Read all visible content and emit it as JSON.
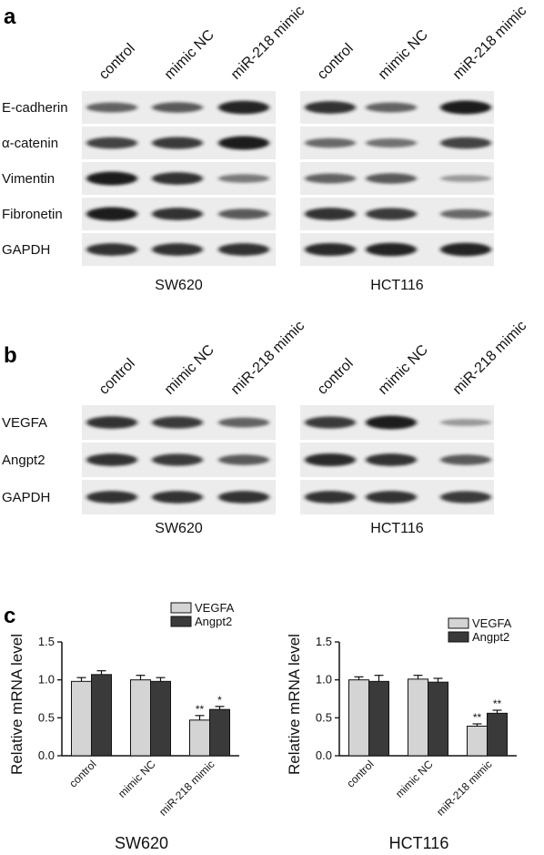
{
  "panels": {
    "a": "a",
    "b": "b",
    "c": "c"
  },
  "lanes": [
    "control",
    "mimic NC",
    "miR-218 mimic"
  ],
  "blot_a": {
    "rows": [
      "E-cadherin",
      "α-catenin",
      "Vimentin",
      "Fibronetin",
      "GAPDH"
    ],
    "cells": [
      "SW620",
      "HCT116"
    ],
    "intensity": {
      "SW620": [
        [
          0.55,
          0.6,
          0.95
        ],
        [
          0.75,
          0.8,
          1.0
        ],
        [
          1.0,
          0.85,
          0.4
        ],
        [
          1.0,
          0.85,
          0.6
        ],
        [
          0.85,
          0.85,
          0.85
        ]
      ],
      "HCT116": [
        [
          0.85,
          0.55,
          1.0
        ],
        [
          0.5,
          0.45,
          0.75
        ],
        [
          0.55,
          0.6,
          0.2
        ],
        [
          0.85,
          0.8,
          0.5
        ],
        [
          0.9,
          0.95,
          0.95
        ]
      ]
    }
  },
  "blot_b": {
    "rows": [
      "VEGFA",
      "Angpt2",
      "GAPDH"
    ],
    "cells": [
      "SW620",
      "HCT116"
    ],
    "intensity": {
      "SW620": [
        [
          0.85,
          0.8,
          0.55
        ],
        [
          0.85,
          0.8,
          0.6
        ],
        [
          0.85,
          0.85,
          0.85
        ]
      ],
      "HCT116": [
        [
          0.8,
          1.0,
          0.2
        ],
        [
          0.9,
          0.85,
          0.6
        ],
        [
          0.85,
          0.85,
          0.8
        ]
      ]
    }
  },
  "colors": {
    "vegfa": "#d4d4d4",
    "angpt2": "#3a3a3a",
    "band": "#1a1a1a"
  },
  "chart_data": [
    {
      "type": "bar",
      "title": "SW620",
      "ylabel": "Relative mRNA level",
      "categories": [
        "control",
        "mimic NC",
        "miR-218 mimic"
      ],
      "series": [
        {
          "name": "VEGFA",
          "values": [
            0.98,
            1.0,
            0.47
          ],
          "errors": [
            0.05,
            0.06,
            0.06
          ],
          "stars": [
            "",
            "",
            "**"
          ]
        },
        {
          "name": "Angpt2",
          "values": [
            1.07,
            0.98,
            0.61
          ],
          "errors": [
            0.05,
            0.05,
            0.04
          ],
          "stars": [
            "",
            "",
            "*"
          ]
        }
      ],
      "ylim": [
        0,
        1.5
      ],
      "yticks": [
        "0.0",
        "0.5",
        "1.0",
        "1.5"
      ],
      "legend": "top-right"
    },
    {
      "type": "bar",
      "title": "HCT116",
      "ylabel": "Relative mRNA level",
      "categories": [
        "control",
        "mimic NC",
        "miR-218 mimic"
      ],
      "series": [
        {
          "name": "VEGFA",
          "values": [
            1.0,
            1.01,
            0.39
          ],
          "errors": [
            0.04,
            0.05,
            0.03
          ],
          "stars": [
            "",
            "",
            "**"
          ]
        },
        {
          "name": "Angpt2",
          "values": [
            0.98,
            0.97,
            0.56
          ],
          "errors": [
            0.08,
            0.05,
            0.04
          ],
          "stars": [
            "",
            "",
            "**"
          ]
        }
      ],
      "ylim": [
        0,
        1.5
      ],
      "yticks": [
        "0.0",
        "0.5",
        "1.0",
        "1.5"
      ],
      "legend": "top-right"
    }
  ]
}
